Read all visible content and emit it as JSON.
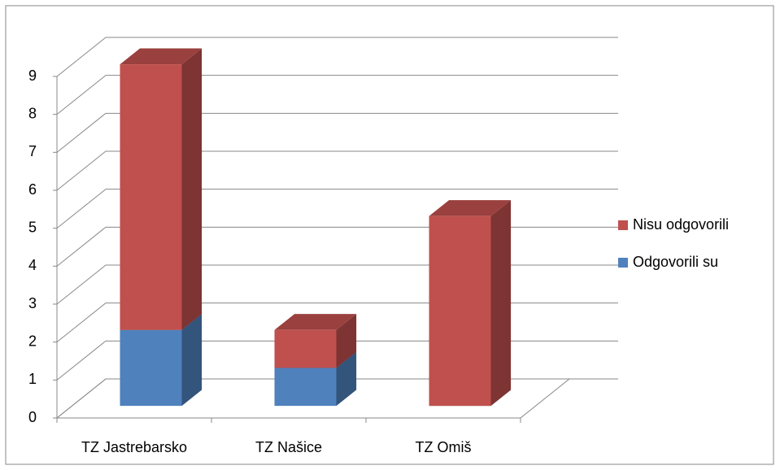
{
  "chart_data": {
    "type": "bar3d_stacked",
    "categories": [
      "TZ Jastrebarsko",
      "TZ Našice",
      "TZ Omiš"
    ],
    "series": [
      {
        "name": "Odgovorili su",
        "color": "#4f81bd",
        "values": [
          2,
          1,
          0
        ]
      },
      {
        "name": "Nisu odgovorili",
        "color": "#c0504d",
        "values": [
          7,
          1,
          5
        ]
      }
    ],
    "ylim": [
      0,
      9
    ],
    "yticks": [
      0,
      1,
      2,
      3,
      4,
      5,
      6,
      7,
      8,
      9
    ],
    "grid": true,
    "legend": "right"
  }
}
